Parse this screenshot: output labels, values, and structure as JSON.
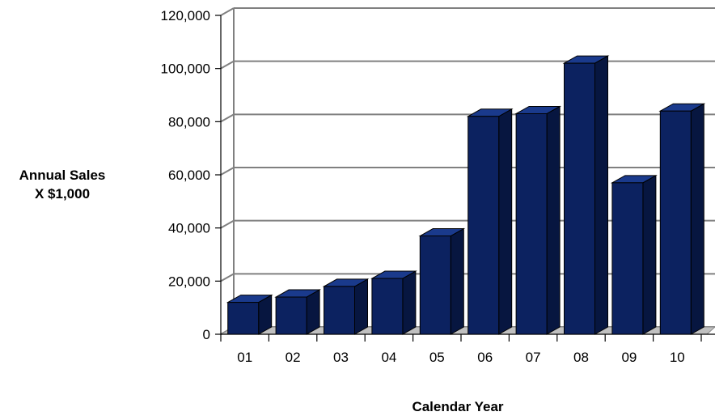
{
  "chart_data": {
    "type": "bar",
    "style": "3d-column",
    "xlabel": "Calendar Year",
    "ylabel_lines": [
      "Annual Sales",
      "X $1,000"
    ],
    "categories": [
      "01",
      "02",
      "03",
      "04",
      "05",
      "06",
      "07",
      "08",
      "09",
      "10"
    ],
    "values": [
      12000,
      14000,
      18000,
      21000,
      37000,
      82000,
      83000,
      102000,
      57000,
      84000
    ],
    "ylim": [
      0,
      120000
    ],
    "yticks": [
      "0",
      "20,000",
      "40,000",
      "60,000",
      "80,000",
      "100,000",
      "120,000"
    ],
    "grid": true,
    "legend": "none",
    "colors": {
      "bar_front": "#0c2260",
      "bar_top": "#1a3a8c",
      "bar_side": "#071640",
      "bar_outline": "#000000",
      "grid": "#808080",
      "floor": "#c0c0c0"
    }
  }
}
